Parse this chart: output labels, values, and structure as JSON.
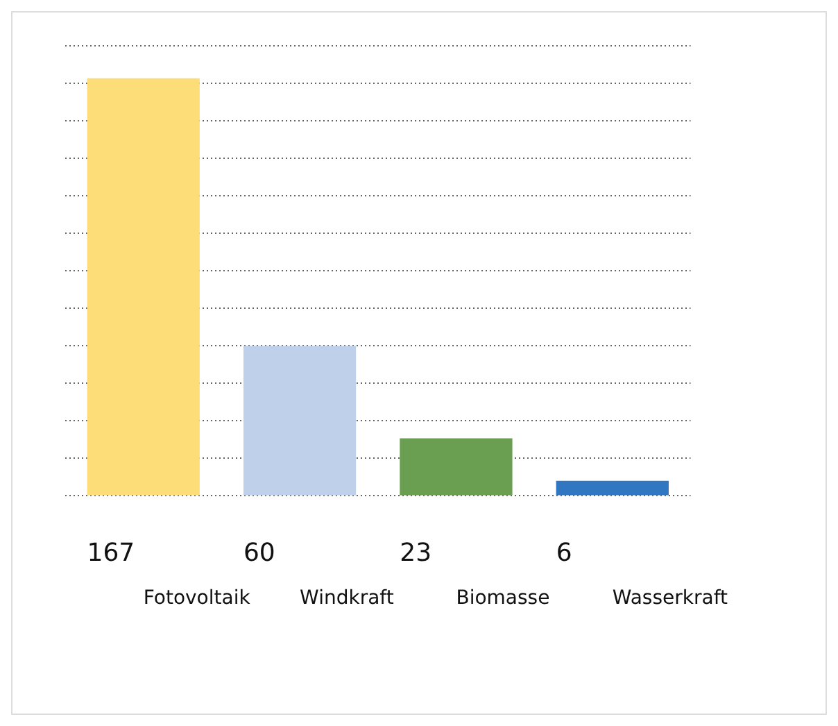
{
  "chart_data": {
    "type": "bar",
    "categories": [
      "Fotovoltaik",
      "Windkraft",
      "Biomasse",
      "Wasserkraft"
    ],
    "values": [
      167,
      60,
      23,
      6
    ],
    "colors": [
      "#fcdd78",
      "#bfd0ea",
      "#6a9e51",
      "#3176c0"
    ],
    "data_labels": true,
    "grid": "y",
    "tick_labels": "x",
    "ylim": [
      0,
      180
    ],
    "yticks": [
      {
        "value": 0,
        "label": null
      },
      {
        "value": 15,
        "label": null
      },
      {
        "value": 30,
        "label": null
      },
      {
        "value": 45,
        "label": null
      },
      {
        "value": 60,
        "label": null
      },
      {
        "value": 75,
        "label": null
      },
      {
        "value": 90,
        "label": null
      },
      {
        "value": 105,
        "label": null
      },
      {
        "value": 120,
        "label": null
      },
      {
        "value": 135,
        "label": null
      },
      {
        "value": 150,
        "label": null
      },
      {
        "value": 165,
        "label": null
      },
      {
        "value": 180,
        "label": null
      }
    ]
  }
}
